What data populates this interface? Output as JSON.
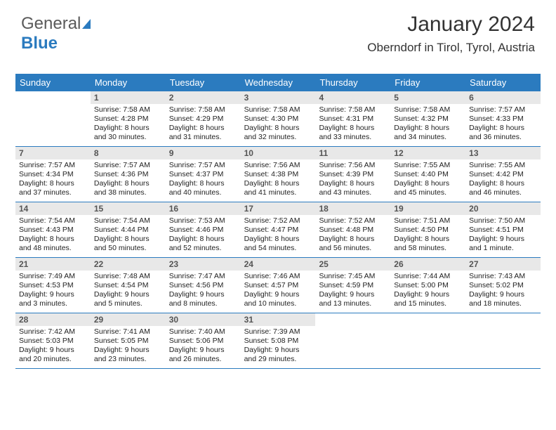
{
  "logo": {
    "part1": "General",
    "part2": "Blue"
  },
  "title": "January 2024",
  "location": "Oberndorf in Tirol, Tyrol, Austria",
  "day_headers": [
    "Sunday",
    "Monday",
    "Tuesday",
    "Wednesday",
    "Thursday",
    "Friday",
    "Saturday"
  ],
  "colors": {
    "header_bg": "#2b7bbf",
    "header_text": "#ffffff",
    "daynum_bg": "#e8e8e8",
    "daynum_text": "#555555",
    "divider": "#2b7bbf",
    "body_text": "#222222",
    "background": "#ffffff"
  },
  "typography": {
    "title_fontsize": 30,
    "location_fontsize": 17,
    "dayheader_fontsize": 13,
    "daynum_fontsize": 12,
    "info_fontsize": 10.5
  },
  "layout": {
    "columns": 7,
    "rows": 5,
    "cell_min_height": 78
  },
  "weeks": [
    [
      null,
      {
        "day": "1",
        "sunrise": "Sunrise: 7:58 AM",
        "sunset": "Sunset: 4:28 PM",
        "dl1": "Daylight: 8 hours",
        "dl2": "and 30 minutes."
      },
      {
        "day": "2",
        "sunrise": "Sunrise: 7:58 AM",
        "sunset": "Sunset: 4:29 PM",
        "dl1": "Daylight: 8 hours",
        "dl2": "and 31 minutes."
      },
      {
        "day": "3",
        "sunrise": "Sunrise: 7:58 AM",
        "sunset": "Sunset: 4:30 PM",
        "dl1": "Daylight: 8 hours",
        "dl2": "and 32 minutes."
      },
      {
        "day": "4",
        "sunrise": "Sunrise: 7:58 AM",
        "sunset": "Sunset: 4:31 PM",
        "dl1": "Daylight: 8 hours",
        "dl2": "and 33 minutes."
      },
      {
        "day": "5",
        "sunrise": "Sunrise: 7:58 AM",
        "sunset": "Sunset: 4:32 PM",
        "dl1": "Daylight: 8 hours",
        "dl2": "and 34 minutes."
      },
      {
        "day": "6",
        "sunrise": "Sunrise: 7:57 AM",
        "sunset": "Sunset: 4:33 PM",
        "dl1": "Daylight: 8 hours",
        "dl2": "and 36 minutes."
      }
    ],
    [
      {
        "day": "7",
        "sunrise": "Sunrise: 7:57 AM",
        "sunset": "Sunset: 4:34 PM",
        "dl1": "Daylight: 8 hours",
        "dl2": "and 37 minutes."
      },
      {
        "day": "8",
        "sunrise": "Sunrise: 7:57 AM",
        "sunset": "Sunset: 4:36 PM",
        "dl1": "Daylight: 8 hours",
        "dl2": "and 38 minutes."
      },
      {
        "day": "9",
        "sunrise": "Sunrise: 7:57 AM",
        "sunset": "Sunset: 4:37 PM",
        "dl1": "Daylight: 8 hours",
        "dl2": "and 40 minutes."
      },
      {
        "day": "10",
        "sunrise": "Sunrise: 7:56 AM",
        "sunset": "Sunset: 4:38 PM",
        "dl1": "Daylight: 8 hours",
        "dl2": "and 41 minutes."
      },
      {
        "day": "11",
        "sunrise": "Sunrise: 7:56 AM",
        "sunset": "Sunset: 4:39 PM",
        "dl1": "Daylight: 8 hours",
        "dl2": "and 43 minutes."
      },
      {
        "day": "12",
        "sunrise": "Sunrise: 7:55 AM",
        "sunset": "Sunset: 4:40 PM",
        "dl1": "Daylight: 8 hours",
        "dl2": "and 45 minutes."
      },
      {
        "day": "13",
        "sunrise": "Sunrise: 7:55 AM",
        "sunset": "Sunset: 4:42 PM",
        "dl1": "Daylight: 8 hours",
        "dl2": "and 46 minutes."
      }
    ],
    [
      {
        "day": "14",
        "sunrise": "Sunrise: 7:54 AM",
        "sunset": "Sunset: 4:43 PM",
        "dl1": "Daylight: 8 hours",
        "dl2": "and 48 minutes."
      },
      {
        "day": "15",
        "sunrise": "Sunrise: 7:54 AM",
        "sunset": "Sunset: 4:44 PM",
        "dl1": "Daylight: 8 hours",
        "dl2": "and 50 minutes."
      },
      {
        "day": "16",
        "sunrise": "Sunrise: 7:53 AM",
        "sunset": "Sunset: 4:46 PM",
        "dl1": "Daylight: 8 hours",
        "dl2": "and 52 minutes."
      },
      {
        "day": "17",
        "sunrise": "Sunrise: 7:52 AM",
        "sunset": "Sunset: 4:47 PM",
        "dl1": "Daylight: 8 hours",
        "dl2": "and 54 minutes."
      },
      {
        "day": "18",
        "sunrise": "Sunrise: 7:52 AM",
        "sunset": "Sunset: 4:48 PM",
        "dl1": "Daylight: 8 hours",
        "dl2": "and 56 minutes."
      },
      {
        "day": "19",
        "sunrise": "Sunrise: 7:51 AM",
        "sunset": "Sunset: 4:50 PM",
        "dl1": "Daylight: 8 hours",
        "dl2": "and 58 minutes."
      },
      {
        "day": "20",
        "sunrise": "Sunrise: 7:50 AM",
        "sunset": "Sunset: 4:51 PM",
        "dl1": "Daylight: 9 hours",
        "dl2": "and 1 minute."
      }
    ],
    [
      {
        "day": "21",
        "sunrise": "Sunrise: 7:49 AM",
        "sunset": "Sunset: 4:53 PM",
        "dl1": "Daylight: 9 hours",
        "dl2": "and 3 minutes."
      },
      {
        "day": "22",
        "sunrise": "Sunrise: 7:48 AM",
        "sunset": "Sunset: 4:54 PM",
        "dl1": "Daylight: 9 hours",
        "dl2": "and 5 minutes."
      },
      {
        "day": "23",
        "sunrise": "Sunrise: 7:47 AM",
        "sunset": "Sunset: 4:56 PM",
        "dl1": "Daylight: 9 hours",
        "dl2": "and 8 minutes."
      },
      {
        "day": "24",
        "sunrise": "Sunrise: 7:46 AM",
        "sunset": "Sunset: 4:57 PM",
        "dl1": "Daylight: 9 hours",
        "dl2": "and 10 minutes."
      },
      {
        "day": "25",
        "sunrise": "Sunrise: 7:45 AM",
        "sunset": "Sunset: 4:59 PM",
        "dl1": "Daylight: 9 hours",
        "dl2": "and 13 minutes."
      },
      {
        "day": "26",
        "sunrise": "Sunrise: 7:44 AM",
        "sunset": "Sunset: 5:00 PM",
        "dl1": "Daylight: 9 hours",
        "dl2": "and 15 minutes."
      },
      {
        "day": "27",
        "sunrise": "Sunrise: 7:43 AM",
        "sunset": "Sunset: 5:02 PM",
        "dl1": "Daylight: 9 hours",
        "dl2": "and 18 minutes."
      }
    ],
    [
      {
        "day": "28",
        "sunrise": "Sunrise: 7:42 AM",
        "sunset": "Sunset: 5:03 PM",
        "dl1": "Daylight: 9 hours",
        "dl2": "and 20 minutes."
      },
      {
        "day": "29",
        "sunrise": "Sunrise: 7:41 AM",
        "sunset": "Sunset: 5:05 PM",
        "dl1": "Daylight: 9 hours",
        "dl2": "and 23 minutes."
      },
      {
        "day": "30",
        "sunrise": "Sunrise: 7:40 AM",
        "sunset": "Sunset: 5:06 PM",
        "dl1": "Daylight: 9 hours",
        "dl2": "and 26 minutes."
      },
      {
        "day": "31",
        "sunrise": "Sunrise: 7:39 AM",
        "sunset": "Sunset: 5:08 PM",
        "dl1": "Daylight: 9 hours",
        "dl2": "and 29 minutes."
      },
      null,
      null,
      null
    ]
  ]
}
